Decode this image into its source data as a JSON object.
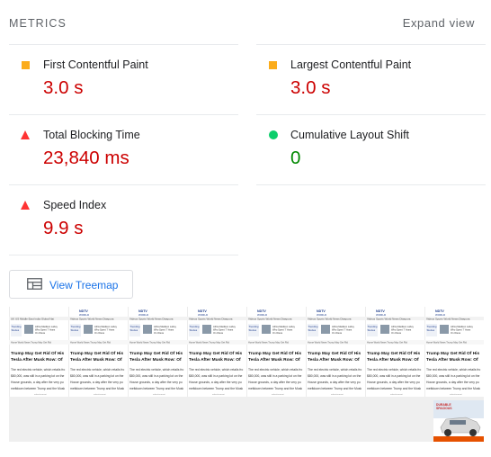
{
  "header": {
    "title": "METRICS",
    "expand_label": "Expand view"
  },
  "colors": {
    "fail": "#ff3333",
    "average": "#fbac1b",
    "pass": "#0cce6b",
    "link": "#1a73e8"
  },
  "metrics": [
    {
      "name": "First Contentful Paint",
      "value": "3.0 s",
      "rating": "average",
      "indicator": "square-icon"
    },
    {
      "name": "Largest Contentful Paint",
      "value": "3.0 s",
      "rating": "average",
      "indicator": "square-icon"
    },
    {
      "name": "Total Blocking Time",
      "value": "23,840 ms",
      "rating": "fail",
      "indicator": "triangle-icon"
    },
    {
      "name": "Cumulative Layout Shift",
      "value": "0",
      "rating": "pass",
      "indicator": "circle-icon"
    },
    {
      "name": "Speed Index",
      "value": "9.9 s",
      "rating": "fail",
      "indicator": "triangle-icon"
    }
  ],
  "treemap": {
    "label": "View Treemap",
    "icon": "treemap-icon"
  },
  "filmstrip": {
    "frame_count": 8,
    "headline_line1": "Trump May Get Rid Of His",
    "headline_line2": "Tesla After Musk Row: Of",
    "body_line1": "The red electric vehicle, which retails fro",
    "body_line2": "$80,000, was still in a parking lot on the",
    "body_line3": "House grounds, a day after the very pu",
    "body_line4": "meltdown between Trump and the Musk",
    "trending_label": "Trending Stories",
    "story_label": "Africa Madison Lahey Guest Who Spent 7 Years On Oleva",
    "ad_label": "advertisement",
    "last_frame_ad": "car-ad-image"
  }
}
